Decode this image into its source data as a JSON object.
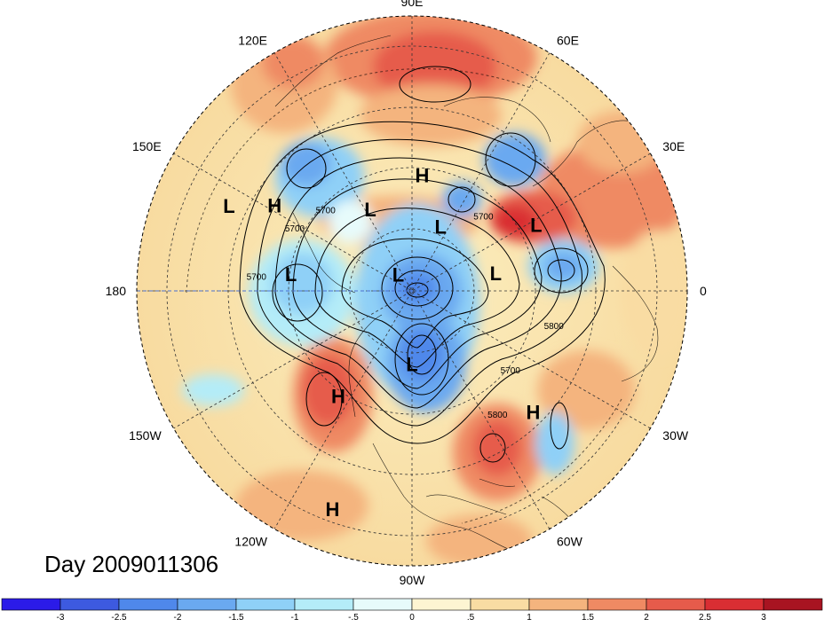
{
  "title": "Day 2009011306",
  "longitude_labels": [
    {
      "text": "90E",
      "lon": 90
    },
    {
      "text": "60E",
      "lon": 60
    },
    {
      "text": "30E",
      "lon": 30
    },
    {
      "text": "0",
      "lon": 0
    },
    {
      "text": "30W",
      "lon": -30
    },
    {
      "text": "60W",
      "lon": -60
    },
    {
      "text": "90W",
      "lon": -90
    },
    {
      "text": "120W",
      "lon": -120
    },
    {
      "text": "150W",
      "lon": -150
    },
    {
      "text": "180",
      "lon": 180
    },
    {
      "text": "150E",
      "lon": 150
    },
    {
      "text": "120E",
      "lon": 120
    }
  ],
  "pressure_centers": [
    {
      "type": "H",
      "lon": 85,
      "lat": 52
    },
    {
      "type": "L",
      "lon": 28,
      "lat": 44
    },
    {
      "type": "L",
      "lon": 66,
      "lat": 67
    },
    {
      "type": "L",
      "lon": 117,
      "lat": 60
    },
    {
      "type": "L",
      "lon": 12,
      "lat": 62
    },
    {
      "type": "L",
      "lon": 130,
      "lat": 83
    },
    {
      "type": "L",
      "lon": 172,
      "lat": 50
    },
    {
      "type": "L",
      "lon": 155,
      "lat": 24
    },
    {
      "type": "H",
      "lon": 148,
      "lat": 37
    },
    {
      "type": "L",
      "lon": -90,
      "lat": 66
    },
    {
      "type": "H",
      "lon": -125,
      "lat": 48
    },
    {
      "type": "H",
      "lon": -45,
      "lat": 34
    },
    {
      "type": "H",
      "lon": -110,
      "lat": 14
    }
  ],
  "contour_labels": [
    {
      "text": "5700",
      "lon": 138,
      "lat": 52
    },
    {
      "text": "5700",
      "lon": 153,
      "lat": 47
    },
    {
      "text": "5700",
      "lon": 176,
      "lat": 39
    },
    {
      "text": "5700",
      "lon": 45,
      "lat": 57
    },
    {
      "text": "5700",
      "lon": -40,
      "lat": 48
    },
    {
      "text": "5800",
      "lon": -15,
      "lat": 42
    },
    {
      "text": "5800",
      "lon": -56,
      "lat": 40
    }
  ],
  "colorbar": {
    "colors": [
      "#2b1be8",
      "#3d5ae0",
      "#4f88eb",
      "#6aa9f0",
      "#8fd0f7",
      "#b4ecf8",
      "#e7fbfb",
      "#fdf5d2",
      "#f9dca3",
      "#f4b47e",
      "#ef8a63",
      "#e65b4b",
      "#d92e33",
      "#a81421"
    ],
    "labels": [
      "-3",
      "-2.5",
      "-2",
      "-1.5",
      "-1",
      "-.5",
      "0",
      ".5",
      "1",
      "1.5",
      "2",
      "2.5",
      "3"
    ]
  }
}
